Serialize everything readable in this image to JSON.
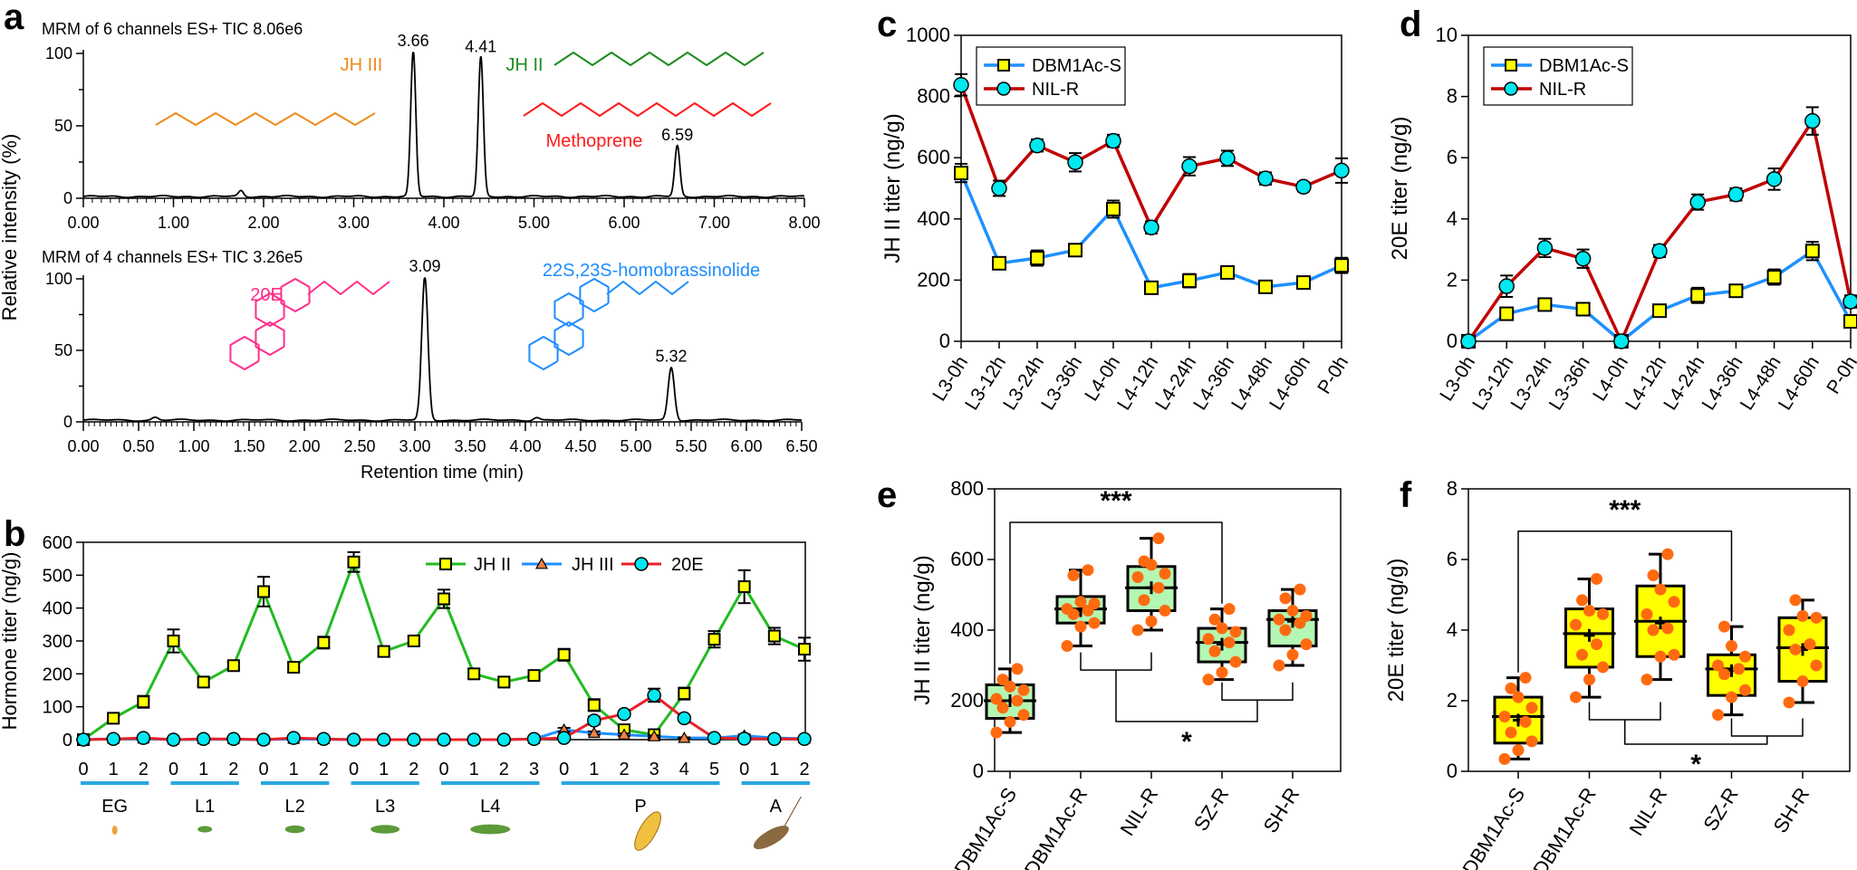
{
  "panel_labels": [
    "a",
    "b",
    "c",
    "d",
    "e",
    "f"
  ],
  "colors": {
    "jh2_line": "#22bb22",
    "jh3_line": "#1e90ff",
    "e20_line": "#e8202a",
    "square_fill": "#ffff00",
    "circle_fill": "#00e8f0",
    "triangle_fill": "#f08040",
    "dbm_line": "#1e90ff",
    "nil_line": "#c00000",
    "box_fill_e": "#b3f7b3",
    "box_fill_f": "#ffff00",
    "dot": "#ff6a10",
    "stage_bar": "#29a8e0"
  },
  "chart_data": [
    {
      "type": "line",
      "panel": "a",
      "title": "MRM of 6 channels ES+   TIC  8.06e6",
      "ylabel": "Relative intensity (%)",
      "xlim": [
        0,
        8
      ],
      "ylim": [
        0,
        100
      ],
      "xticks": [
        "0.00",
        "1.00",
        "2.00",
        "3.00",
        "4.00",
        "5.00",
        "6.00",
        "7.00",
        "8.00"
      ],
      "yticks": [
        "0",
        "50",
        "100"
      ],
      "peaks": [
        {
          "rt": 1.75,
          "height": 4,
          "label": null
        },
        {
          "rt": 3.66,
          "height": 100,
          "label": "3.66"
        },
        {
          "rt": 4.41,
          "height": 96,
          "label": "4.41"
        },
        {
          "rt": 6.59,
          "height": 35,
          "label": "6.59"
        }
      ],
      "compounds": [
        {
          "name": "JH III",
          "color": "#f08a1c"
        },
        {
          "name": "JH II",
          "color": "#1e8c1e"
        },
        {
          "name": "Methoprene",
          "color": "#ff1a1a"
        }
      ]
    },
    {
      "type": "line",
      "panel": "a",
      "title": "MRM of 4 channels ES+   TIC  3.26e5",
      "xlabel": "Retention time (min)",
      "xlim": [
        0,
        6.5
      ],
      "ylim": [
        0,
        100
      ],
      "xticks": [
        "0.00",
        "0.50",
        "1.00",
        "1.50",
        "2.00",
        "2.50",
        "3.00",
        "3.50",
        "4.00",
        "4.50",
        "5.00",
        "5.50",
        "6.00",
        "6.50"
      ],
      "yticks": [
        "0",
        "50",
        "100"
      ],
      "peaks": [
        {
          "rt": 0.65,
          "height": 2,
          "label": null
        },
        {
          "rt": 3.09,
          "height": 100,
          "label": "3.09"
        },
        {
          "rt": 4.1,
          "height": 2,
          "label": null
        },
        {
          "rt": 5.32,
          "height": 37,
          "label": "5.32"
        }
      ],
      "compounds": [
        {
          "name": "20E",
          "color": "#ff2d8c"
        },
        {
          "name": "22S,23S-homobrassinolide",
          "color": "#1e8cff"
        }
      ]
    },
    {
      "type": "line",
      "panel": "b",
      "ylabel": "Hormone titer (ng/g)",
      "ylim": [
        0,
        600
      ],
      "yticks": [
        "0",
        "100",
        "200",
        "300",
        "400",
        "500",
        "600"
      ],
      "stages": [
        {
          "name": "EG",
          "days": [
            "0",
            "1",
            "2"
          ]
        },
        {
          "name": "L1",
          "days": [
            "0",
            "1",
            "2"
          ]
        },
        {
          "name": "L2",
          "days": [
            "0",
            "1",
            "2"
          ]
        },
        {
          "name": "L3",
          "days": [
            "0",
            "1",
            "2"
          ]
        },
        {
          "name": "L4",
          "days": [
            "0",
            "1",
            "2",
            "3"
          ]
        },
        {
          "name": "P",
          "days": [
            "0",
            "1",
            "2",
            "3",
            "4",
            "5"
          ]
        },
        {
          "name": "A",
          "days": [
            "0",
            "1",
            "2"
          ]
        }
      ],
      "legend_position": "top-right",
      "series": [
        {
          "name": "JH II",
          "marker": "square",
          "values": [
            0,
            65,
            115,
            300,
            175,
            225,
            450,
            220,
            295,
            540,
            268,
            300,
            428,
            200,
            175,
            195,
            258,
            105,
            30,
            15,
            140,
            305,
            465,
            315,
            275
          ],
          "errors": [
            5,
            10,
            18,
            35,
            12,
            12,
            45,
            15,
            18,
            30,
            15,
            15,
            28,
            15,
            12,
            15,
            18,
            18,
            10,
            8,
            18,
            25,
            50,
            25,
            35
          ]
        },
        {
          "name": "JH III",
          "marker": "triangle",
          "values": [
            0,
            2,
            3,
            0,
            1,
            1,
            0,
            2,
            1,
            0,
            0,
            0,
            0,
            0,
            0,
            2,
            30,
            20,
            15,
            10,
            5,
            5,
            12,
            5,
            3
          ],
          "errors": [
            1,
            2,
            2,
            1,
            1,
            1,
            1,
            2,
            1,
            1,
            1,
            1,
            1,
            1,
            1,
            2,
            6,
            5,
            4,
            3,
            2,
            2,
            4,
            2,
            2
          ]
        },
        {
          "name": "20E",
          "marker": "circle",
          "values": [
            0,
            2,
            5,
            0,
            2,
            2,
            0,
            5,
            2,
            0,
            0,
            0,
            0,
            0,
            0,
            2,
            5,
            58,
            78,
            135,
            65,
            5,
            3,
            2,
            2
          ],
          "errors": [
            1,
            2,
            3,
            1,
            2,
            2,
            1,
            3,
            2,
            1,
            1,
            1,
            1,
            1,
            1,
            2,
            3,
            12,
            8,
            20,
            8,
            3,
            2,
            2,
            2
          ]
        }
      ]
    },
    {
      "type": "line",
      "panel": "c",
      "ylabel": "JH II titer (ng/g)",
      "ylim": [
        0,
        1000
      ],
      "yticks": [
        "0",
        "200",
        "400",
        "600",
        "800",
        "1000"
      ],
      "categories": [
        "L3-0h",
        "L3-12h",
        "L3-24h",
        "L3-36h",
        "L4-0h",
        "L4-12h",
        "L4-24h",
        "L4-36h",
        "L4-48h",
        "L4-60h",
        "P-0h"
      ],
      "legend_position": "top-left",
      "series": [
        {
          "name": "DBM1Ac-S",
          "marker": "square",
          "values": [
            550,
            255,
            272,
            298,
            432,
            175,
            198,
            225,
            178,
            192,
            248
          ],
          "errors": [
            30,
            15,
            25,
            20,
            28,
            15,
            22,
            15,
            15,
            10,
            25
          ]
        },
        {
          "name": "NIL-R",
          "marker": "circle",
          "values": [
            838,
            500,
            640,
            585,
            655,
            372,
            572,
            598,
            532,
            505,
            558
          ],
          "errors": [
            35,
            25,
            20,
            30,
            20,
            20,
            30,
            25,
            20,
            15,
            40
          ]
        }
      ]
    },
    {
      "type": "line",
      "panel": "d",
      "ylabel": "20E titer (ng/g)",
      "ylim": [
        0,
        10
      ],
      "yticks": [
        "0",
        "2",
        "4",
        "6",
        "8",
        "10"
      ],
      "categories": [
        "L3-0h",
        "L3-12h",
        "L3-24h",
        "L3-36h",
        "L4-0h",
        "L4-12h",
        "L4-24h",
        "L4-36h",
        "L4-48h",
        "L4-60h",
        "P-0h"
      ],
      "legend_position": "top-left",
      "series": [
        {
          "name": "DBM1Ac-S",
          "marker": "square",
          "values": [
            0,
            0.9,
            1.2,
            1.05,
            0,
            1.0,
            1.5,
            1.65,
            2.1,
            2.95,
            0.65
          ],
          "errors": [
            0,
            0.1,
            0.1,
            0.1,
            0,
            0.1,
            0.25,
            0.2,
            0.25,
            0.3,
            0.15
          ]
        },
        {
          "name": "NIL-R",
          "marker": "circle",
          "values": [
            0,
            1.8,
            3.05,
            2.7,
            0,
            2.95,
            4.55,
            4.8,
            5.3,
            7.2,
            1.3
          ],
          "errors": [
            0,
            0.35,
            0.3,
            0.3,
            0,
            0.2,
            0.25,
            0.2,
            0.35,
            0.45,
            0.2
          ]
        }
      ]
    },
    {
      "type": "box",
      "panel": "e",
      "ylabel": "JH II titer (ng/g)",
      "ylim": [
        0,
        800
      ],
      "yticks": [
        "0",
        "200",
        "400",
        "600",
        "800"
      ],
      "categories": [
        "DBM1Ac-S",
        "DBM1Ac-R",
        "NIL-R",
        "SZ-R",
        "SH-R"
      ],
      "boxes": [
        {
          "min": 110,
          "q1": 150,
          "median": 200,
          "q3": 245,
          "max": 290,
          "mean": 200,
          "points": [
            110,
            140,
            160,
            180,
            200,
            205,
            230,
            240,
            260,
            290
          ]
        },
        {
          "min": 355,
          "q1": 420,
          "median": 460,
          "q3": 495,
          "max": 570,
          "mean": 455,
          "points": [
            355,
            410,
            420,
            445,
            455,
            460,
            475,
            480,
            555,
            570
          ]
        },
        {
          "min": 400,
          "q1": 455,
          "median": 520,
          "q3": 580,
          "max": 660,
          "mean": 520,
          "points": [
            400,
            425,
            455,
            485,
            520,
            550,
            560,
            585,
            595,
            660
          ]
        },
        {
          "min": 260,
          "q1": 310,
          "median": 365,
          "q3": 405,
          "max": 460,
          "mean": 360,
          "points": [
            260,
            280,
            310,
            340,
            365,
            375,
            395,
            405,
            430,
            460
          ]
        },
        {
          "min": 300,
          "q1": 355,
          "median": 430,
          "q3": 455,
          "max": 515,
          "mean": 425,
          "points": [
            300,
            330,
            360,
            400,
            420,
            430,
            440,
            455,
            490,
            515
          ]
        }
      ],
      "significance": {
        "top": {
          "groups": [
            0,
            3
          ],
          "level": 705,
          "label": "***"
        },
        "bottom": {
          "left_pair": [
            1,
            2
          ],
          "left_level": 287,
          "right_pair": [
            3,
            4
          ],
          "right_level": 202,
          "join_level": 141,
          "label": "*"
        }
      }
    },
    {
      "type": "box",
      "panel": "f",
      "ylabel": "20E titer (ng/g)",
      "ylim": [
        0,
        8
      ],
      "yticks": [
        "0",
        "2",
        "4",
        "6",
        "8"
      ],
      "categories": [
        "DBM1Ac-S",
        "DBM1Ac-R",
        "NIL-R",
        "SZ-R",
        "SH-R"
      ],
      "boxes": [
        {
          "min": 0.35,
          "q1": 0.8,
          "median": 1.55,
          "q3": 2.1,
          "max": 2.65,
          "mean": 1.45,
          "points": [
            0.35,
            0.6,
            0.85,
            1.1,
            1.4,
            1.55,
            1.8,
            2.1,
            2.35,
            2.65
          ]
        },
        {
          "min": 2.1,
          "q1": 2.95,
          "median": 3.9,
          "q3": 4.6,
          "max": 5.45,
          "mean": 3.85,
          "points": [
            2.1,
            2.6,
            2.95,
            3.3,
            3.6,
            4.15,
            4.45,
            4.55,
            4.85,
            5.45
          ]
        },
        {
          "min": 2.6,
          "q1": 3.25,
          "median": 4.25,
          "q3": 5.25,
          "max": 6.15,
          "mean": 4.2,
          "points": [
            2.6,
            3.25,
            3.3,
            4.0,
            4.05,
            4.45,
            4.8,
            5.15,
            5.55,
            6.15
          ]
        },
        {
          "min": 1.6,
          "q1": 2.15,
          "median": 2.9,
          "q3": 3.3,
          "max": 4.1,
          "mean": 2.85,
          "points": [
            1.6,
            2.1,
            2.3,
            2.75,
            2.9,
            3.0,
            3.25,
            3.55,
            4.1
          ]
        },
        {
          "min": 1.95,
          "q1": 2.55,
          "median": 3.5,
          "q3": 4.35,
          "max": 4.85,
          "mean": 3.45,
          "points": [
            1.95,
            2.55,
            3.0,
            3.45,
            3.6,
            4.0,
            4.35,
            4.4,
            4.85
          ]
        }
      ],
      "significance": {
        "top": {
          "groups": [
            0,
            3
          ],
          "level": 6.8,
          "label": "***"
        },
        "bottom": {
          "left_pair": [
            1,
            2
          ],
          "left_level": 1.46,
          "right_pair": [
            3,
            4
          ],
          "right_level": 1.0,
          "join_level": 0.77,
          "label": "*"
        }
      }
    }
  ]
}
